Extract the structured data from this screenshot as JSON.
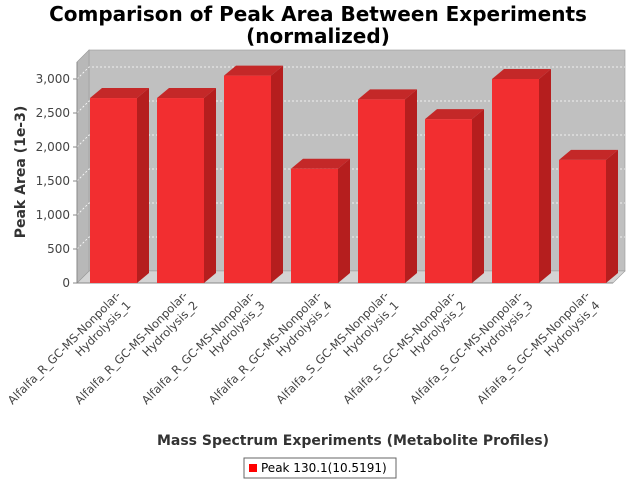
{
  "chart_data": {
    "type": "bar",
    "title": "Comparison of Peak Area Between Experiments\n(normalized)",
    "xlabel": "Mass Spectrum Experiments (Metabolite Profiles)",
    "ylabel": "Peak Area (1e-3)",
    "ylim": [
      0,
      3250
    ],
    "yticks": [
      0,
      500,
      1000,
      1500,
      2000,
      2500,
      3000
    ],
    "ytick_labels": [
      "0",
      "500",
      "1,000",
      "1,500",
      "2,000",
      "2,500",
      "3,000"
    ],
    "categories": [
      "Alfalfa_R_GC-MS-Nonpolar-Hydrolysis_1",
      "Alfalfa_R_GC-MS-Nonpolar-Hydrolysis_2",
      "Alfalfa_R_GC-MS-Nonpolar-Hydrolysis_3",
      "Alfalfa_R_GC-MS-Nonpolar-Hydrolysis_4",
      "Alfalfa_S_GC-MS-Nonpolar-Hydrolysis_1",
      "Alfalfa_S_GC-MS-Nonpolar-Hydrolysis_2",
      "Alfalfa_S_GC-MS-Nonpolar-Hydrolysis_3",
      "Alfalfa_S_GC-MS-Nonpolar-Hydrolysis_4"
    ],
    "series": [
      {
        "name": "Peak 130.1(10.5191)",
        "color": "#ff0000",
        "values": [
          2720,
          2720,
          3050,
          1680,
          2700,
          2410,
          3000,
          1810
        ]
      }
    ],
    "legend_position": "bottom",
    "grid": true,
    "style": "3d"
  }
}
